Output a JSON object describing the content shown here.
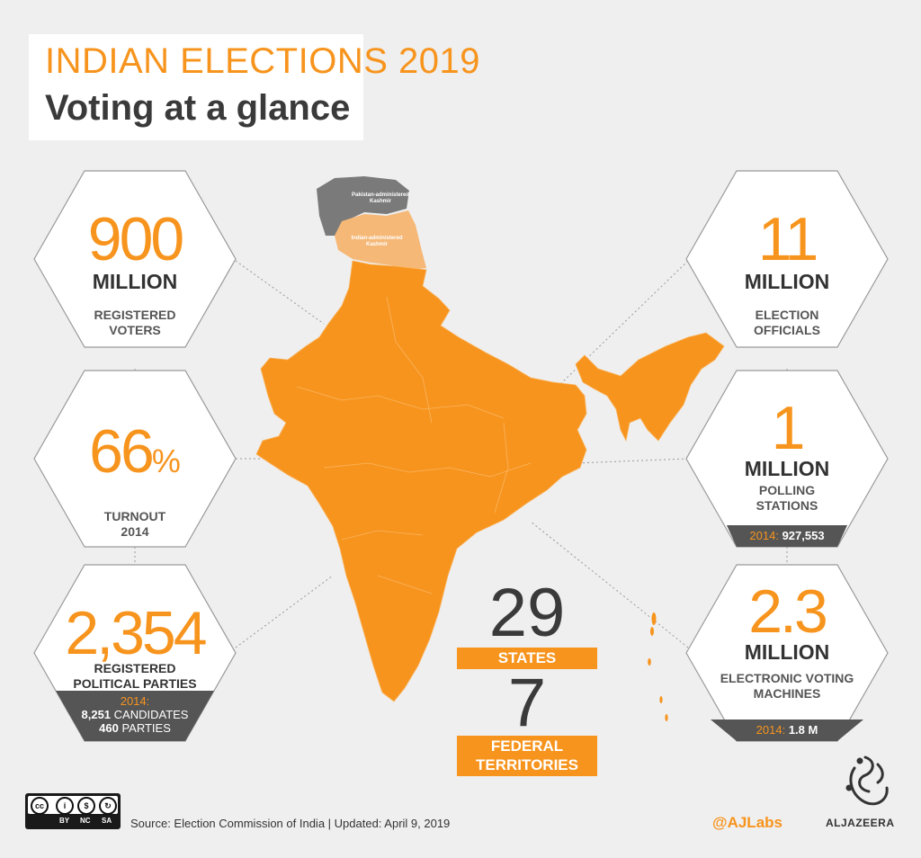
{
  "header": {
    "title": "INDIAN ELECTIONS 2019",
    "subtitle": "Voting at a glance"
  },
  "map": {
    "pak_kashmir_label": "Pakistan-administered Kashmir",
    "ind_kashmir_label": "Indian-administered Kashmir",
    "fill_color": "#f7941d",
    "pak_color": "#7a7a7a",
    "kashmir_color": "#f5b877"
  },
  "stats_left": [
    {
      "big": "900",
      "unit": "MILLION",
      "label_1": "REGISTERED",
      "label_2": "VOTERS"
    },
    {
      "big": "66",
      "suffix": "%",
      "label_1": "TURNOUT",
      "label_2": "2014"
    },
    {
      "big": "2,354",
      "label_1": "REGISTERED",
      "label_2": "POLITICAL PARTIES",
      "band_year": "2014:",
      "band_line_1_num": "8,251",
      "band_line_1_text": " CANDIDATES",
      "band_line_2_num": "460",
      "band_line_2_text": " PARTIES"
    }
  ],
  "stats_right": [
    {
      "big": "11",
      "unit": "MILLION",
      "label_1": "ELECTION",
      "label_2": "OFFICIALS"
    },
    {
      "big": "1",
      "unit": "MILLION",
      "label_1": "POLLING",
      "label_2": "STATIONS",
      "band_year": "2014:",
      "band_value": " 927,553"
    },
    {
      "big": "2.3",
      "unit": "MILLION",
      "label_1": "ELECTRONIC VOTING",
      "label_2": "MACHINES",
      "band_year": "2014:",
      "band_value": " 1.8 M"
    }
  ],
  "center": {
    "states_count": "29",
    "states_label": "STATES",
    "territories_count": "7",
    "territories_label_1": "FEDERAL",
    "territories_label_2": "TERRITORIES"
  },
  "footer": {
    "source": "Source:  Election Commission of India |  Updated: April 9, 2019",
    "cc_by": "BY",
    "cc_nc": "NC",
    "cc_sa": "SA",
    "handle": "@AJLabs",
    "brand": "ALJAZEERA"
  },
  "colors": {
    "accent": "#f7941d",
    "dark": "#3a3a3a",
    "band": "#555555"
  }
}
